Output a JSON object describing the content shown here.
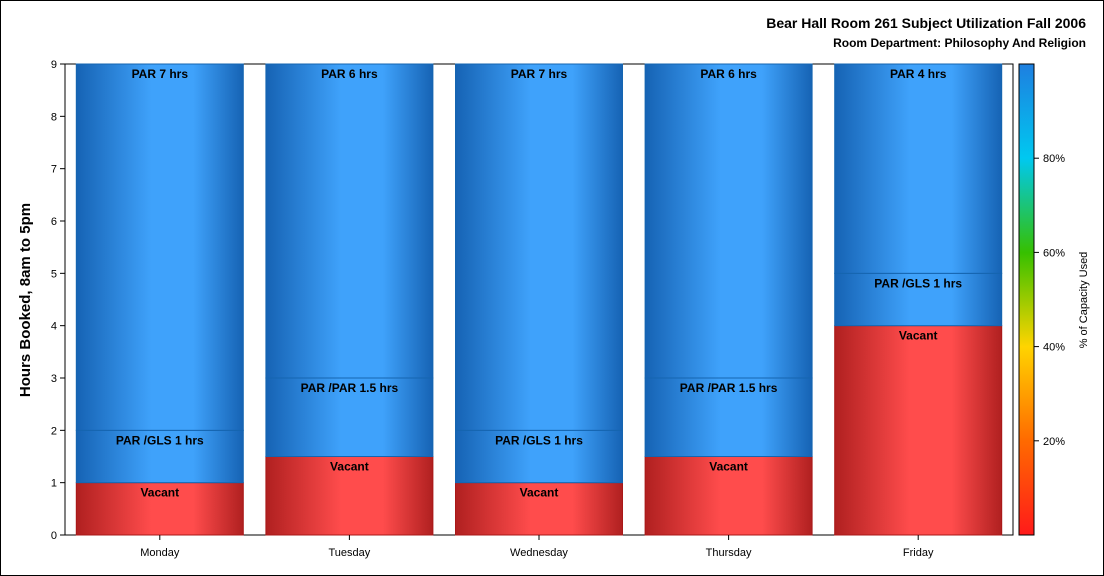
{
  "chart_data": {
    "type": "bar",
    "stacked": true,
    "title": "Bear Hall Room 261 Subject Utilization Fall 2006",
    "subtitle": "Room Department:  Philosophy And Religion",
    "ylabel": "Hours Booked, 8am to 5pm",
    "xlabel": "",
    "ylim": [
      0,
      9
    ],
    "yticks": [
      "0",
      "1",
      "2",
      "3",
      "4",
      "5",
      "6",
      "7",
      "8",
      "9"
    ],
    "categories": [
      "Monday",
      "Tuesday",
      "Wednesday",
      "Thursday",
      "Friday"
    ],
    "bars": [
      {
        "category": "Monday",
        "segments": [
          {
            "label": "Vacant",
            "value": 1,
            "kind": "vacant"
          },
          {
            "label": "PAR /GLS 1 hrs",
            "value": 1,
            "kind": "booked"
          },
          {
            "label": "PAR 7 hrs",
            "value": 7,
            "kind": "booked"
          }
        ]
      },
      {
        "category": "Tuesday",
        "segments": [
          {
            "label": "Vacant",
            "value": 1.5,
            "kind": "vacant"
          },
          {
            "label": "PAR /PAR 1.5 hrs",
            "value": 1.5,
            "kind": "booked"
          },
          {
            "label": "PAR 6 hrs",
            "value": 6,
            "kind": "booked"
          }
        ]
      },
      {
        "category": "Wednesday",
        "segments": [
          {
            "label": "Vacant",
            "value": 1,
            "kind": "vacant"
          },
          {
            "label": "PAR /GLS 1 hrs",
            "value": 1,
            "kind": "booked"
          },
          {
            "label": "PAR 7 hrs",
            "value": 7,
            "kind": "booked"
          }
        ]
      },
      {
        "category": "Thursday",
        "segments": [
          {
            "label": "Vacant",
            "value": 1.5,
            "kind": "vacant"
          },
          {
            "label": "PAR /PAR 1.5 hrs",
            "value": 1.5,
            "kind": "booked"
          },
          {
            "label": "PAR 6 hrs",
            "value": 6,
            "kind": "booked"
          }
        ]
      },
      {
        "category": "Friday",
        "segments": [
          {
            "label": "Vacant",
            "value": 4,
            "kind": "vacant"
          },
          {
            "label": "PAR /GLS 1 hrs",
            "value": 1,
            "kind": "booked"
          },
          {
            "label": "PAR 4 hrs",
            "value": 4,
            "kind": "booked"
          }
        ]
      }
    ],
    "colorbar": {
      "label": "% of Capacity Used",
      "ticks": [
        "20%",
        "40%",
        "60%",
        "80%"
      ],
      "tick_values": [
        20,
        40,
        60,
        80
      ],
      "range": [
        0,
        100
      ],
      "colors": [
        "#ff1a1a",
        "#ff6a00",
        "#ffd400",
        "#36c000",
        "#00c8f0",
        "#1e7fe0"
      ]
    },
    "colors": {
      "booked": "#3a9cf4",
      "booked_edge": "#1565b0",
      "vacant": "#ff4a4a",
      "vacant_edge": "#a81818"
    },
    "grid": false,
    "legend": "colorbar-right"
  }
}
